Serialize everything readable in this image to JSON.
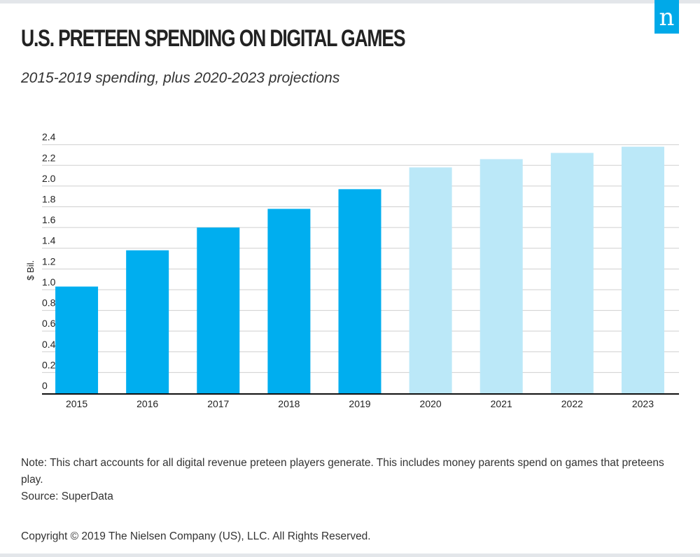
{
  "header": {
    "title": "U.S. PRETEEN SPENDING ON DIGITAL GAMES",
    "subtitle": "2015-2019 spending, plus 2020-2023 projections",
    "logo_text": "n"
  },
  "chart_data": {
    "type": "bar",
    "categories": [
      "2015",
      "2016",
      "2017",
      "2018",
      "2019",
      "2020",
      "2021",
      "2022",
      "2023"
    ],
    "values": [
      1.03,
      1.38,
      1.6,
      1.78,
      1.97,
      2.18,
      2.26,
      2.32,
      2.38
    ],
    "projected": [
      false,
      false,
      false,
      false,
      false,
      true,
      true,
      true,
      true
    ],
    "ylabel": "$ Bil.",
    "ylim": [
      0,
      2.4
    ],
    "yticks": [
      "0",
      "0.2",
      "0.4",
      "0.6",
      "0.8",
      "1.0",
      "1.2",
      "1.4",
      "1.6",
      "1.8",
      "2.0",
      "2.2",
      "2.4"
    ],
    "grid": true,
    "colors": {
      "actual": "#00aeef",
      "projected": "#bbe8f8"
    }
  },
  "footer": {
    "note": "Note: This chart accounts for all digital revenue preteen players generate. This includes money parents spend on games that preteens play.",
    "source": "Source: SuperData",
    "copyright": "Copyright © 2019 The Nielsen Company (US), LLC. All Rights Reserved."
  }
}
